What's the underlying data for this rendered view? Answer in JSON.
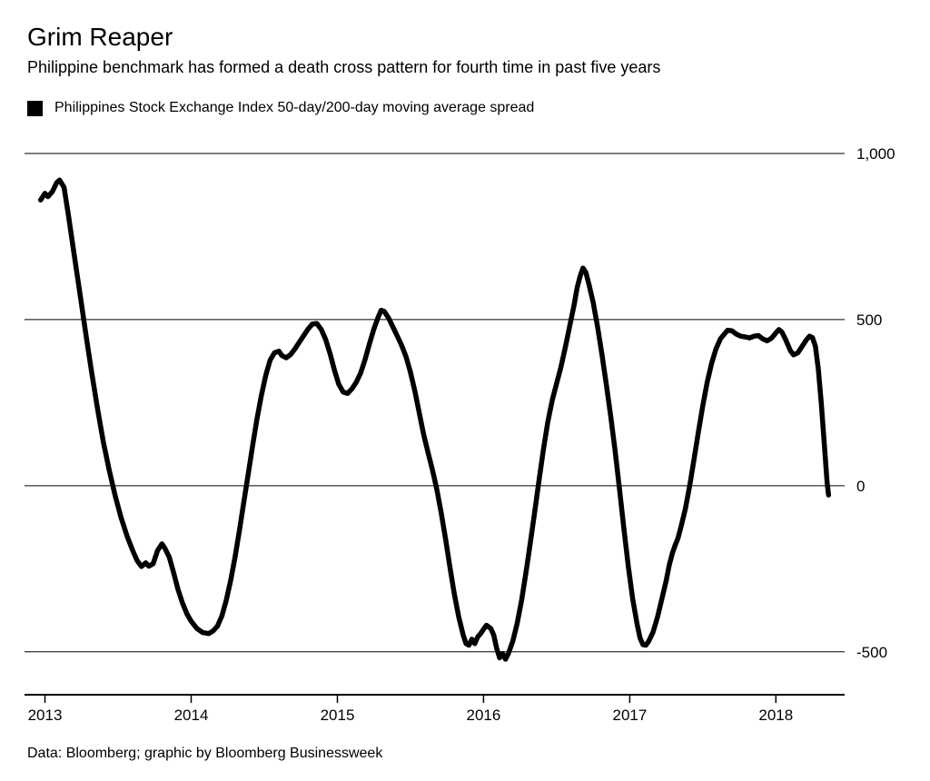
{
  "header": {
    "title": "Grim Reaper",
    "subtitle": "Philippine benchmark has formed a death cross pattern for fourth time in past five years"
  },
  "legend": {
    "label": "Philippines Stock Exchange Index 50-day/200-day moving average spread",
    "marker_color": "#000000"
  },
  "footer": {
    "source": "Data: Bloomberg; graphic by Bloomberg Businessweek"
  },
  "chart_data": {
    "type": "line",
    "title": "Grim Reaper",
    "xlabel": "",
    "ylabel": "",
    "grid": "horizontal",
    "x_range": [
      2012.86,
      2018.47
    ],
    "y_range": [
      -629,
      1000
    ],
    "x_ticks": [
      2013,
      2014,
      2015,
      2016,
      2017,
      2018
    ],
    "x_tick_labels": [
      "2013",
      "2014",
      "2015",
      "2016",
      "2017",
      "2018"
    ],
    "y_ticks": [
      1000,
      500,
      0,
      -500
    ],
    "y_tick_labels": [
      "1,000",
      "500",
      "0",
      "-500"
    ],
    "series": [
      {
        "name": "Philippines Stock Exchange Index 50-day/200-day moving average spread",
        "color": "#000000",
        "points": [
          [
            2012.97,
            860
          ],
          [
            2013.0,
            880
          ],
          [
            2013.02,
            870
          ],
          [
            2013.05,
            885
          ],
          [
            2013.08,
            912
          ],
          [
            2013.1,
            920
          ],
          [
            2013.13,
            898
          ],
          [
            2013.16,
            815
          ],
          [
            2013.2,
            695
          ],
          [
            2013.24,
            575
          ],
          [
            2013.28,
            455
          ],
          [
            2013.32,
            340
          ],
          [
            2013.36,
            230
          ],
          [
            2013.4,
            130
          ],
          [
            2013.44,
            45
          ],
          [
            2013.48,
            -30
          ],
          [
            2013.52,
            -95
          ],
          [
            2013.56,
            -150
          ],
          [
            2013.6,
            -195
          ],
          [
            2013.63,
            -225
          ],
          [
            2013.66,
            -243
          ],
          [
            2013.69,
            -232
          ],
          [
            2013.71,
            -242
          ],
          [
            2013.74,
            -235
          ],
          [
            2013.77,
            -195
          ],
          [
            2013.8,
            -175
          ],
          [
            2013.82,
            -188
          ],
          [
            2013.85,
            -215
          ],
          [
            2013.88,
            -262
          ],
          [
            2013.91,
            -312
          ],
          [
            2013.94,
            -352
          ],
          [
            2013.97,
            -385
          ],
          [
            2014.0,
            -408
          ],
          [
            2014.04,
            -430
          ],
          [
            2014.08,
            -442
          ],
          [
            2014.12,
            -445
          ],
          [
            2014.15,
            -437
          ],
          [
            2014.18,
            -422
          ],
          [
            2014.21,
            -392
          ],
          [
            2014.24,
            -345
          ],
          [
            2014.27,
            -285
          ],
          [
            2014.3,
            -215
          ],
          [
            2014.33,
            -135
          ],
          [
            2014.36,
            -50
          ],
          [
            2014.39,
            35
          ],
          [
            2014.42,
            120
          ],
          [
            2014.45,
            200
          ],
          [
            2014.48,
            272
          ],
          [
            2014.51,
            332
          ],
          [
            2014.54,
            378
          ],
          [
            2014.57,
            400
          ],
          [
            2014.6,
            405
          ],
          [
            2014.62,
            392
          ],
          [
            2014.65,
            385
          ],
          [
            2014.68,
            395
          ],
          [
            2014.71,
            412
          ],
          [
            2014.74,
            432
          ],
          [
            2014.77,
            452
          ],
          [
            2014.8,
            472
          ],
          [
            2014.83,
            487
          ],
          [
            2014.86,
            488
          ],
          [
            2014.89,
            470
          ],
          [
            2014.92,
            440
          ],
          [
            2014.95,
            398
          ],
          [
            2014.98,
            348
          ],
          [
            2015.01,
            305
          ],
          [
            2015.04,
            282
          ],
          [
            2015.07,
            278
          ],
          [
            2015.1,
            292
          ],
          [
            2015.13,
            312
          ],
          [
            2015.16,
            340
          ],
          [
            2015.19,
            380
          ],
          [
            2015.22,
            428
          ],
          [
            2015.25,
            472
          ],
          [
            2015.28,
            508
          ],
          [
            2015.3,
            528
          ],
          [
            2015.32,
            525
          ],
          [
            2015.35,
            505
          ],
          [
            2015.38,
            478
          ],
          [
            2015.41,
            450
          ],
          [
            2015.44,
            422
          ],
          [
            2015.47,
            388
          ],
          [
            2015.5,
            342
          ],
          [
            2015.53,
            285
          ],
          [
            2015.56,
            220
          ],
          [
            2015.59,
            155
          ],
          [
            2015.62,
            100
          ],
          [
            2015.65,
            48
          ],
          [
            2015.68,
            -10
          ],
          [
            2015.71,
            -80
          ],
          [
            2015.74,
            -160
          ],
          [
            2015.77,
            -245
          ],
          [
            2015.8,
            -325
          ],
          [
            2015.83,
            -395
          ],
          [
            2015.86,
            -448
          ],
          [
            2015.88,
            -475
          ],
          [
            2015.9,
            -480
          ],
          [
            2015.92,
            -462
          ],
          [
            2015.94,
            -475
          ],
          [
            2015.96,
            -455
          ],
          [
            2015.98,
            -445
          ],
          [
            2016.0,
            -432
          ],
          [
            2016.02,
            -420
          ],
          [
            2016.05,
            -430
          ],
          [
            2016.07,
            -450
          ],
          [
            2016.09,
            -490
          ],
          [
            2016.11,
            -518
          ],
          [
            2016.13,
            -505
          ],
          [
            2016.15,
            -522
          ],
          [
            2016.17,
            -505
          ],
          [
            2016.2,
            -468
          ],
          [
            2016.23,
            -415
          ],
          [
            2016.26,
            -345
          ],
          [
            2016.29,
            -262
          ],
          [
            2016.32,
            -172
          ],
          [
            2016.35,
            -78
          ],
          [
            2016.38,
            18
          ],
          [
            2016.41,
            110
          ],
          [
            2016.44,
            192
          ],
          [
            2016.47,
            258
          ],
          [
            2016.5,
            308
          ],
          [
            2016.53,
            358
          ],
          [
            2016.56,
            418
          ],
          [
            2016.59,
            482
          ],
          [
            2016.62,
            545
          ],
          [
            2016.64,
            595
          ],
          [
            2016.66,
            630
          ],
          [
            2016.68,
            655
          ],
          [
            2016.7,
            642
          ],
          [
            2016.72,
            608
          ],
          [
            2016.75,
            552
          ],
          [
            2016.78,
            478
          ],
          [
            2016.81,
            395
          ],
          [
            2016.84,
            305
          ],
          [
            2016.87,
            208
          ],
          [
            2016.9,
            105
          ],
          [
            2016.93,
            -10
          ],
          [
            2016.96,
            -128
          ],
          [
            2016.99,
            -242
          ],
          [
            2017.02,
            -340
          ],
          [
            2017.05,
            -415
          ],
          [
            2017.07,
            -458
          ],
          [
            2017.09,
            -478
          ],
          [
            2017.11,
            -480
          ],
          [
            2017.13,
            -468
          ],
          [
            2017.16,
            -440
          ],
          [
            2017.19,
            -395
          ],
          [
            2017.22,
            -340
          ],
          [
            2017.25,
            -285
          ],
          [
            2017.27,
            -240
          ],
          [
            2017.29,
            -205
          ],
          [
            2017.31,
            -180
          ],
          [
            2017.33,
            -158
          ],
          [
            2017.35,
            -125
          ],
          [
            2017.38,
            -70
          ],
          [
            2017.41,
            0
          ],
          [
            2017.44,
            80
          ],
          [
            2017.47,
            162
          ],
          [
            2017.5,
            242
          ],
          [
            2017.53,
            312
          ],
          [
            2017.56,
            368
          ],
          [
            2017.59,
            412
          ],
          [
            2017.62,
            442
          ],
          [
            2017.65,
            458
          ],
          [
            2017.67,
            468
          ],
          [
            2017.7,
            466
          ],
          [
            2017.73,
            456
          ],
          [
            2017.76,
            450
          ],
          [
            2017.79,
            448
          ],
          [
            2017.82,
            445
          ],
          [
            2017.85,
            450
          ],
          [
            2017.88,
            452
          ],
          [
            2017.91,
            442
          ],
          [
            2017.94,
            436
          ],
          [
            2017.97,
            444
          ],
          [
            2018.0,
            460
          ],
          [
            2018.02,
            470
          ],
          [
            2018.04,
            463
          ],
          [
            2018.06,
            446
          ],
          [
            2018.08,
            426
          ],
          [
            2018.1,
            406
          ],
          [
            2018.12,
            394
          ],
          [
            2018.15,
            400
          ],
          [
            2018.18,
            420
          ],
          [
            2018.21,
            440
          ],
          [
            2018.23,
            450
          ],
          [
            2018.25,
            446
          ],
          [
            2018.27,
            420
          ],
          [
            2018.29,
            352
          ],
          [
            2018.31,
            252
          ],
          [
            2018.33,
            130
          ],
          [
            2018.35,
            10
          ],
          [
            2018.36,
            -28
          ]
        ]
      }
    ]
  }
}
